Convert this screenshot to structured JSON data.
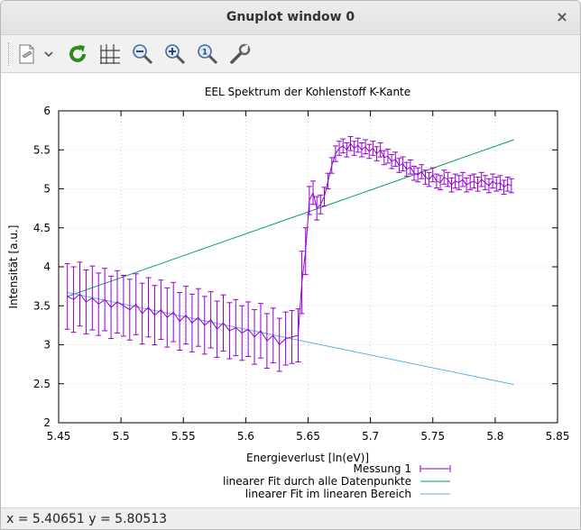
{
  "window": {
    "title": "Gnuplot window 0",
    "close_glyph": "×"
  },
  "toolbar": {
    "items": [
      {
        "name": "export-icon",
        "tooltip": ""
      },
      {
        "name": "dropdown-icon",
        "tooltip": ""
      },
      {
        "name": "replot-icon",
        "tooltip": ""
      },
      {
        "name": "grid-icon",
        "tooltip": ""
      },
      {
        "name": "zoom-out-icon",
        "tooltip": ""
      },
      {
        "name": "zoom-in-icon",
        "tooltip": ""
      },
      {
        "name": "zoom-fit-icon",
        "tooltip": ""
      },
      {
        "name": "settings-icon",
        "tooltip": ""
      }
    ]
  },
  "status": {
    "text": "x = 5.40651 y = 5.80513"
  },
  "chart_data": {
    "type": "line",
    "title": "EEL Spektrum der Kohlenstoff K-Kante",
    "xlabel": "Energieverlust [ln(eV)]",
    "ylabel": "Intensität [a.u.]",
    "xlim": [
      5.45,
      5.85
    ],
    "ylim": [
      2,
      6
    ],
    "grid": true,
    "legend_position": "bottom-right",
    "x_ticks": [
      "5.45",
      "5.5",
      "5.55",
      "5.6",
      "5.65",
      "5.7",
      "5.75",
      "5.8",
      "5.85"
    ],
    "y_ticks": [
      "2",
      "2.5",
      "3",
      "3.5",
      "4",
      "4.5",
      "5",
      "5.5",
      "6"
    ],
    "colors": {
      "measurement": "#9400d3",
      "fit_all": "#009e73",
      "fit_linear": "#56b4e9"
    },
    "series": [
      {
        "name": "Messung 1",
        "style": "errorbars",
        "x": [
          5.457,
          5.462,
          5.467,
          5.472,
          5.477,
          5.482,
          5.487,
          5.492,
          5.497,
          5.502,
          5.507,
          5.512,
          5.517,
          5.522,
          5.527,
          5.532,
          5.537,
          5.542,
          5.547,
          5.552,
          5.557,
          5.562,
          5.567,
          5.572,
          5.577,
          5.582,
          5.587,
          5.592,
          5.597,
          5.602,
          5.607,
          5.612,
          5.617,
          5.622,
          5.627,
          5.632,
          5.637,
          5.642,
          5.645,
          5.648,
          5.651,
          5.654,
          5.657,
          5.66,
          5.663,
          5.666,
          5.669,
          5.672,
          5.675,
          5.678,
          5.681,
          5.684,
          5.687,
          5.69,
          5.693,
          5.696,
          5.699,
          5.702,
          5.705,
          5.708,
          5.711,
          5.714,
          5.717,
          5.72,
          5.723,
          5.726,
          5.729,
          5.732,
          5.735,
          5.738,
          5.741,
          5.744,
          5.747,
          5.75,
          5.753,
          5.756,
          5.759,
          5.762,
          5.765,
          5.768,
          5.771,
          5.774,
          5.777,
          5.78,
          5.783,
          5.786,
          5.789,
          5.792,
          5.795,
          5.798,
          5.801,
          5.804,
          5.807,
          5.81,
          5.813
        ],
        "y": [
          3.62,
          3.58,
          3.65,
          3.55,
          3.6,
          3.52,
          3.58,
          3.48,
          3.55,
          3.5,
          3.45,
          3.52,
          3.4,
          3.48,
          3.38,
          3.45,
          3.35,
          3.42,
          3.3,
          3.38,
          3.28,
          3.35,
          3.25,
          3.32,
          3.2,
          3.28,
          3.18,
          3.22,
          3.15,
          3.2,
          3.1,
          3.18,
          3.05,
          3.12,
          3.0,
          3.08,
          3.1,
          3.12,
          3.8,
          4.2,
          4.85,
          4.95,
          4.75,
          4.8,
          4.9,
          5.1,
          5.3,
          5.45,
          5.52,
          5.55,
          5.5,
          5.58,
          5.52,
          5.56,
          5.5,
          5.54,
          5.48,
          5.52,
          5.45,
          5.5,
          5.4,
          5.42,
          5.35,
          5.38,
          5.3,
          5.32,
          5.25,
          5.28,
          5.2,
          5.18,
          5.22,
          5.15,
          5.12,
          5.18,
          5.1,
          5.08,
          5.15,
          5.12,
          5.05,
          5.1,
          5.08,
          5.12,
          5.05,
          5.08,
          5.1,
          5.06,
          5.12,
          5.08,
          5.04,
          5.1,
          5.06,
          5.08,
          5.02,
          5.06,
          5.04
        ],
        "err": [
          0.42,
          0.42,
          0.41,
          0.41,
          0.41,
          0.4,
          0.4,
          0.4,
          0.4,
          0.39,
          0.39,
          0.39,
          0.39,
          0.38,
          0.38,
          0.38,
          0.38,
          0.38,
          0.37,
          0.37,
          0.37,
          0.37,
          0.37,
          0.36,
          0.36,
          0.36,
          0.36,
          0.36,
          0.35,
          0.35,
          0.35,
          0.35,
          0.35,
          0.35,
          0.34,
          0.34,
          0.34,
          0.34,
          0.4,
          0.3,
          0.18,
          0.15,
          0.15,
          0.12,
          0.12,
          0.1,
          0.1,
          0.1,
          0.09,
          0.09,
          0.09,
          0.09,
          0.09,
          0.09,
          0.09,
          0.09,
          0.09,
          0.09,
          0.09,
          0.09,
          0.09,
          0.09,
          0.09,
          0.09,
          0.09,
          0.09,
          0.09,
          0.09,
          0.09,
          0.09,
          0.09,
          0.09,
          0.09,
          0.09,
          0.09,
          0.09,
          0.09,
          0.09,
          0.09,
          0.09,
          0.09,
          0.09,
          0.09,
          0.09,
          0.09,
          0.09,
          0.09,
          0.09,
          0.09,
          0.09,
          0.09,
          0.09,
          0.09,
          0.09,
          0.09
        ]
      },
      {
        "name": "linearer Fit durch alle Datenpunkte",
        "style": "line",
        "x": [
          5.457,
          5.815
        ],
        "y": [
          3.62,
          5.63
        ]
      },
      {
        "name": "linearer Fit im linearen Bereich",
        "style": "line",
        "x": [
          5.457,
          5.815
        ],
        "y": [
          3.67,
          2.49
        ]
      }
    ]
  }
}
